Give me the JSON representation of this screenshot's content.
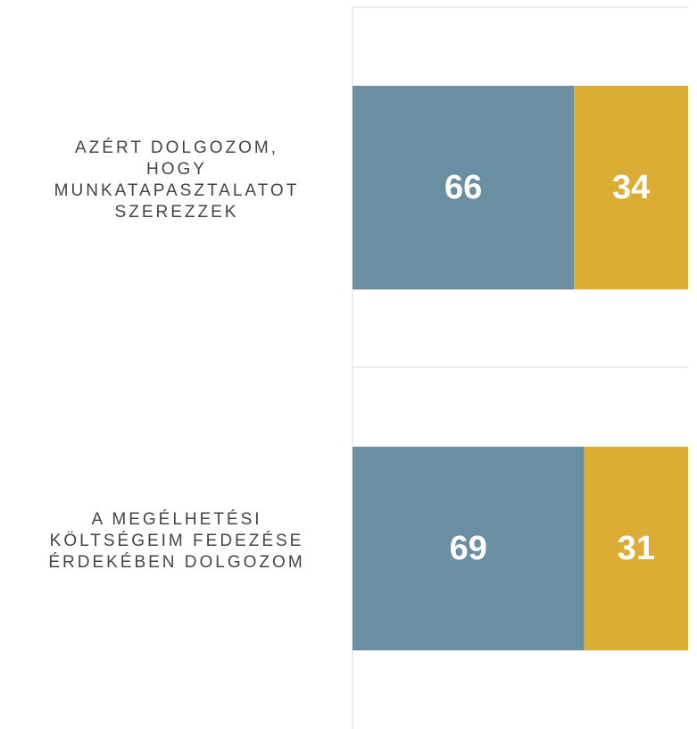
{
  "chart_data": {
    "type": "bar",
    "categories": [
      [
        "AZÉRT DOLGOZOM,",
        "HOGY",
        "MUNKATAPASZTALATOT",
        "SZEREZZEK"
      ],
      [
        "A MEGÉLHETÉSI",
        "KÖLTSÉGEIM FEDEZÉSE",
        "ÉRDEKÉBEN DOLGOZOM"
      ]
    ],
    "series": [
      {
        "color": "#6a8fa3",
        "values": [
          66,
          69
        ]
      },
      {
        "color": "#dcac34",
        "values": [
          34,
          31
        ]
      }
    ],
    "xlim": [
      0,
      100
    ]
  }
}
